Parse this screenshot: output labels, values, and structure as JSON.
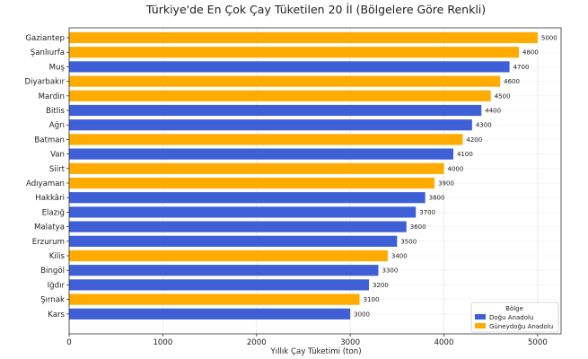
{
  "chart_data": {
    "type": "bar",
    "orientation": "horizontal",
    "title": "Türkiye'de En Çok Çay Tüketilen 20 İl (Bölgelere Göre Renkli)",
    "xlabel": "Yıllık Çay Tüketimi (ton)",
    "ylabel": "",
    "xlim": [
      0,
      5250
    ],
    "xticks": [
      "0",
      "1000",
      "2000",
      "3000",
      "4000",
      "5000"
    ],
    "grid": true,
    "legend_title": "Bölge",
    "legend_position": "bottom-right",
    "regions": [
      {
        "name": "Doğu Anadolu",
        "color": "#3f5fd6"
      },
      {
        "name": "Güneydoğu Anadolu",
        "color": "#ffab00"
      }
    ],
    "categories": [
      "Gaziantep",
      "Şanlıurfa",
      "Muş",
      "Diyarbakır",
      "Mardin",
      "Bitlis",
      "Ağrı",
      "Batman",
      "Van",
      "Siirt",
      "Adıyaman",
      "Hakkâri",
      "Elazığ",
      "Malatya",
      "Erzurum",
      "Kilis",
      "Bingöl",
      "Iğdır",
      "Şırnak",
      "Kars"
    ],
    "values": [
      5000,
      4800,
      4700,
      4600,
      4500,
      4400,
      4300,
      4200,
      4100,
      4000,
      3900,
      3800,
      3700,
      3600,
      3500,
      3400,
      3300,
      3200,
      3100,
      3000
    ],
    "value_labels": [
      "5000",
      "4800",
      "4700",
      "4600",
      "4500",
      "4400",
      "4300",
      "4200",
      "4100",
      "4000",
      "3900",
      "3800",
      "3700",
      "3600",
      "3500",
      "3400",
      "3300",
      "3200",
      "3100",
      "3000"
    ],
    "region_index": [
      1,
      1,
      0,
      1,
      1,
      0,
      0,
      1,
      0,
      1,
      1,
      0,
      0,
      0,
      0,
      1,
      0,
      0,
      1,
      0
    ]
  }
}
